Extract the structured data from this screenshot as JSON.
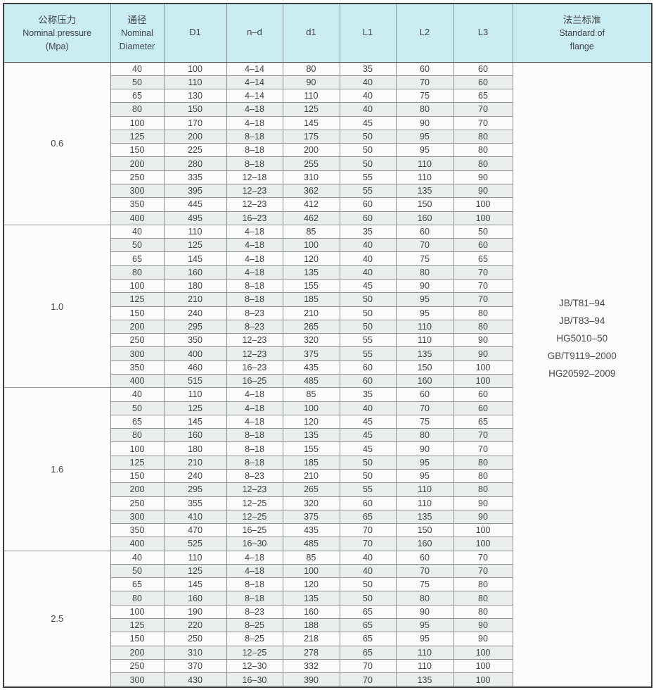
{
  "header": {
    "columns": [
      {
        "lines": [
          "公称压力",
          "Nominal pressure",
          "(Mpa)"
        ]
      },
      {
        "lines": [
          "通径",
          "Nominal",
          "Diameter"
        ]
      },
      {
        "lines": [
          "D1"
        ]
      },
      {
        "lines": [
          "n–d"
        ]
      },
      {
        "lines": [
          "d1"
        ]
      },
      {
        "lines": [
          "L1"
        ]
      },
      {
        "lines": [
          "L2"
        ]
      },
      {
        "lines": [
          "L3"
        ]
      },
      {
        "lines": [
          "法兰标准",
          "Standard of",
          "flange"
        ]
      }
    ]
  },
  "groups": [
    {
      "pressure": "0.6",
      "rows": [
        [
          "40",
          "100",
          "4–14",
          "80",
          "35",
          "60",
          "60"
        ],
        [
          "50",
          "110",
          "4–14",
          "90",
          "40",
          "70",
          "60"
        ],
        [
          "65",
          "130",
          "4–14",
          "110",
          "40",
          "75",
          "65"
        ],
        [
          "80",
          "150",
          "4–18",
          "125",
          "40",
          "80",
          "70"
        ],
        [
          "100",
          "170",
          "4–18",
          "145",
          "45",
          "90",
          "70"
        ],
        [
          "125",
          "200",
          "8–18",
          "175",
          "50",
          "95",
          "80"
        ],
        [
          "150",
          "225",
          "8–18",
          "200",
          "50",
          "95",
          "80"
        ],
        [
          "200",
          "280",
          "8–18",
          "255",
          "50",
          "110",
          "80"
        ],
        [
          "250",
          "335",
          "12–18",
          "310",
          "55",
          "110",
          "90"
        ],
        [
          "300",
          "395",
          "12–23",
          "362",
          "55",
          "135",
          "90"
        ],
        [
          "350",
          "445",
          "12–23",
          "412",
          "60",
          "150",
          "100"
        ],
        [
          "400",
          "495",
          "16–23",
          "462",
          "60",
          "160",
          "100"
        ]
      ]
    },
    {
      "pressure": "1.0",
      "rows": [
        [
          "40",
          "110",
          "4–18",
          "85",
          "35",
          "60",
          "50"
        ],
        [
          "50",
          "125",
          "4–18",
          "100",
          "40",
          "70",
          "60"
        ],
        [
          "65",
          "145",
          "4–18",
          "120",
          "40",
          "75",
          "65"
        ],
        [
          "80",
          "160",
          "4–18",
          "135",
          "40",
          "80",
          "70"
        ],
        [
          "100",
          "180",
          "8–18",
          "155",
          "45",
          "90",
          "70"
        ],
        [
          "125",
          "210",
          "8–18",
          "185",
          "50",
          "95",
          "70"
        ],
        [
          "150",
          "240",
          "8–23",
          "210",
          "50",
          "95",
          "80"
        ],
        [
          "200",
          "295",
          "8–23",
          "265",
          "50",
          "110",
          "80"
        ],
        [
          "250",
          "350",
          "12–23",
          "320",
          "55",
          "110",
          "90"
        ],
        [
          "300",
          "400",
          "12–23",
          "375",
          "55",
          "135",
          "90"
        ],
        [
          "350",
          "460",
          "16–23",
          "435",
          "60",
          "150",
          "100"
        ],
        [
          "400",
          "515",
          "16–25",
          "485",
          "60",
          "160",
          "100"
        ]
      ]
    },
    {
      "pressure": "1.6",
      "rows": [
        [
          "40",
          "110",
          "4–18",
          "85",
          "35",
          "60",
          "60"
        ],
        [
          "50",
          "125",
          "4–18",
          "100",
          "40",
          "70",
          "60"
        ],
        [
          "65",
          "145",
          "4–18",
          "120",
          "45",
          "75",
          "65"
        ],
        [
          "80",
          "160",
          "8–18",
          "135",
          "45",
          "80",
          "70"
        ],
        [
          "100",
          "180",
          "8–18",
          "155",
          "45",
          "90",
          "70"
        ],
        [
          "125",
          "210",
          "8–18",
          "185",
          "50",
          "95",
          "80"
        ],
        [
          "150",
          "240",
          "8–23",
          "210",
          "50",
          "95",
          "80"
        ],
        [
          "200",
          "295",
          "12–23",
          "265",
          "55",
          "110",
          "80"
        ],
        [
          "250",
          "355",
          "12–25",
          "320",
          "60",
          "110",
          "90"
        ],
        [
          "300",
          "410",
          "12–25",
          "375",
          "65",
          "135",
          "90"
        ],
        [
          "350",
          "470",
          "16–25",
          "435",
          "70",
          "150",
          "100"
        ],
        [
          "400",
          "525",
          "16–30",
          "485",
          "70",
          "160",
          "100"
        ]
      ]
    },
    {
      "pressure": "2.5",
      "rows": [
        [
          "40",
          "110",
          "4–18",
          "85",
          "40",
          "60",
          "70"
        ],
        [
          "50",
          "125",
          "4–18",
          "100",
          "40",
          "70",
          "70"
        ],
        [
          "65",
          "145",
          "8–18",
          "120",
          "50",
          "75",
          "80"
        ],
        [
          "80",
          "160",
          "8–18",
          "135",
          "50",
          "80",
          "80"
        ],
        [
          "100",
          "190",
          "8–23",
          "160",
          "65",
          "90",
          "80"
        ],
        [
          "125",
          "220",
          "8–25",
          "188",
          "65",
          "95",
          "90"
        ],
        [
          "150",
          "250",
          "8–25",
          "218",
          "65",
          "95",
          "90"
        ],
        [
          "200",
          "310",
          "12–25",
          "278",
          "65",
          "110",
          "100"
        ],
        [
          "250",
          "370",
          "12–30",
          "332",
          "70",
          "110",
          "100"
        ],
        [
          "300",
          "430",
          "16–30",
          "390",
          "70",
          "135",
          "100"
        ]
      ]
    }
  ],
  "standards": {
    "lines": [
      "JB/T81–94",
      "JB/T83–94",
      "HG5010–50",
      "GB/T9119–2000",
      "HG20592–2009"
    ]
  },
  "colors": {
    "header_bg": "#c9edf3",
    "stripe_bg": "#e9edee",
    "row_bg": "#fbfbfb",
    "border_dark": "#3c3f42",
    "border_light": "#8e9294",
    "text": "#3f4245"
  }
}
